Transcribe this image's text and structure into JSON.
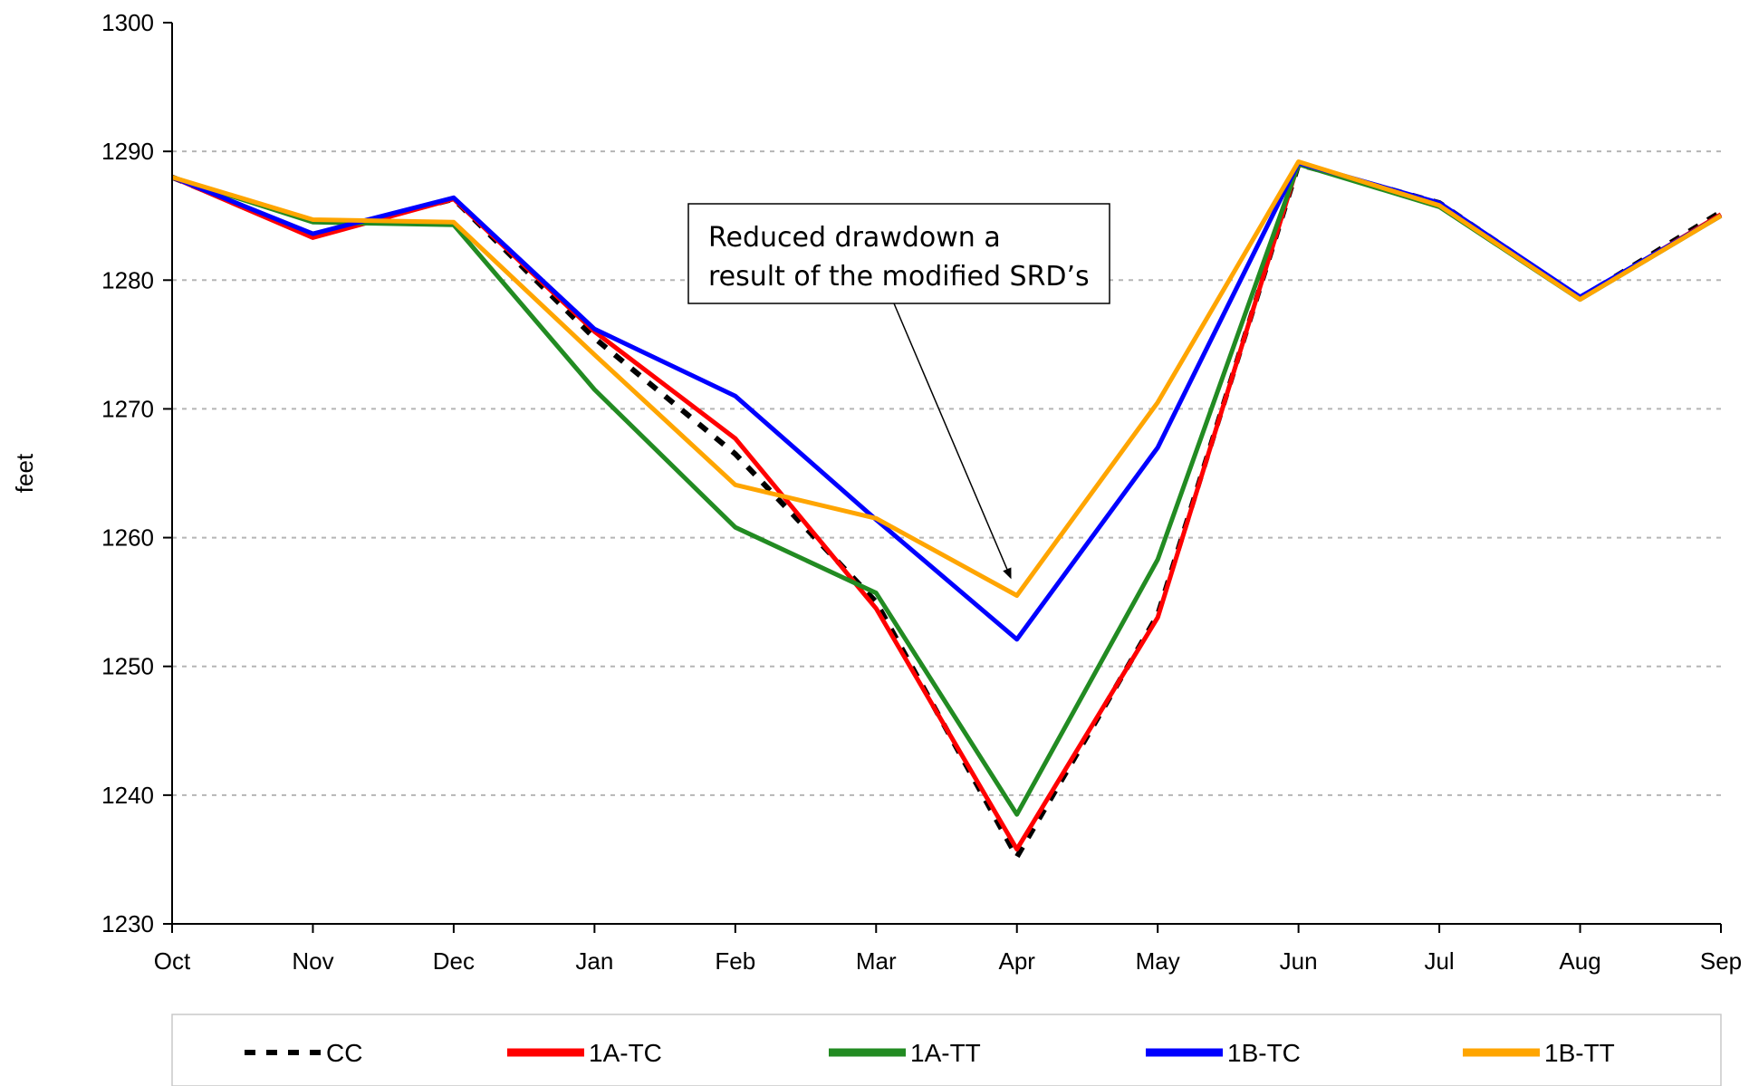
{
  "chart_data": {
    "type": "line",
    "title": "",
    "xlabel": "",
    "ylabel": "feet",
    "ylim": [
      1230,
      1300
    ],
    "yticks": [
      1230,
      1240,
      1250,
      1260,
      1270,
      1280,
      1290,
      1300
    ],
    "categories": [
      "Oct",
      "Nov",
      "Dec",
      "Jan",
      "Feb",
      "Mar",
      "Apr",
      "May",
      "Jun",
      "Jul",
      "Aug",
      "Sep"
    ],
    "grid": "horizontal dashed",
    "legend_position": "bottom",
    "series": [
      {
        "name": "CC",
        "color": "#000000",
        "style": "dashed",
        "values": [
          1288,
          1283.5,
          1286.3,
          1275.5,
          1266.5,
          1255,
          1235.2,
          1254,
          1289,
          1286,
          1278.6,
          1285.3
        ]
      },
      {
        "name": "1A-TC",
        "color": "#ff0000",
        "style": "solid",
        "values": [
          1288,
          1283.3,
          1286.3,
          1276,
          1267.7,
          1254.5,
          1235.8,
          1253.8,
          1289.1,
          1285.8,
          1278.6,
          1285.1
        ]
      },
      {
        "name": "1A-TT",
        "color": "#228b22",
        "style": "solid",
        "values": [
          1288,
          1284.5,
          1284.3,
          1271.5,
          1260.8,
          1255.7,
          1238.5,
          1258.3,
          1289,
          1285.7,
          1278.5,
          1285
        ]
      },
      {
        "name": "1B-TC",
        "color": "#0000ff",
        "style": "solid",
        "values": [
          1288,
          1283.6,
          1286.4,
          1276.2,
          1271,
          1261.4,
          1252.1,
          1267,
          1289.1,
          1286,
          1278.7,
          1285
        ]
      },
      {
        "name": "1B-TT",
        "color": "#ffa500",
        "style": "solid",
        "values": [
          1288,
          1284.7,
          1284.5,
          1274.2,
          1264.1,
          1261.5,
          1255.5,
          1270.5,
          1289.2,
          1285.8,
          1278.5,
          1285
        ]
      }
    ],
    "annotation": {
      "lines": [
        "Reduced drawdown a",
        "result of the modified SRD’s"
      ],
      "points_to": {
        "x": "Apr",
        "y": 1255.5
      }
    }
  }
}
